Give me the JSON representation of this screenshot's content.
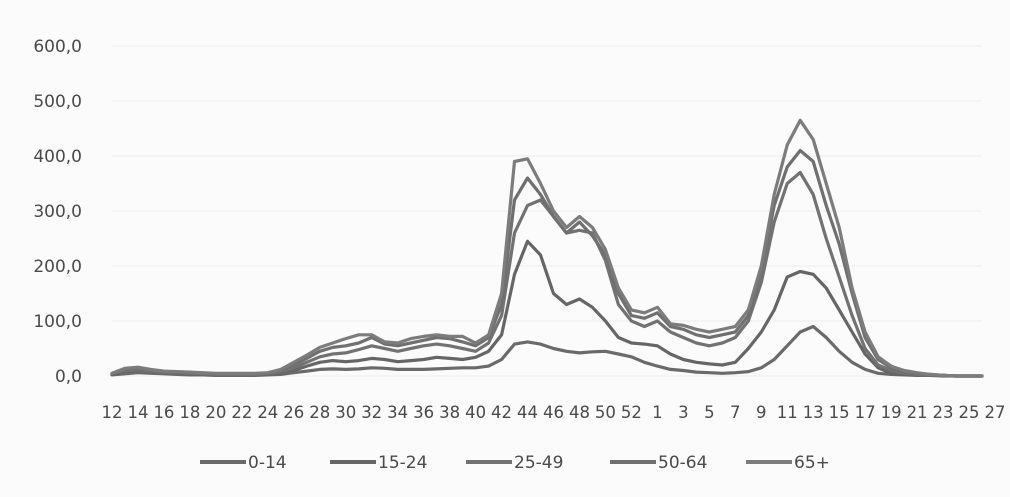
{
  "chart_data": {
    "type": "line",
    "title": "",
    "xlabel": "",
    "ylabel": "",
    "ylim": [
      0,
      600
    ],
    "yticks": [
      "0,0",
      "100,0",
      "200,0",
      "300,0",
      "400,0",
      "500,0",
      "600,0"
    ],
    "ytick_values": [
      0,
      100,
      200,
      300,
      400,
      500,
      600
    ],
    "x": [
      12,
      13,
      14,
      15,
      16,
      17,
      18,
      19,
      20,
      21,
      22,
      23,
      24,
      25,
      26,
      27,
      28,
      29,
      30,
      31,
      32,
      33,
      34,
      35,
      36,
      37,
      38,
      39,
      40,
      41,
      42,
      43,
      44,
      45,
      46,
      47,
      48,
      49,
      50,
      51,
      52,
      1,
      2,
      3,
      4,
      5,
      6,
      7,
      8,
      9,
      10,
      11,
      12,
      13,
      14,
      15,
      16,
      17,
      18,
      19,
      20,
      21,
      22,
      23,
      24,
      25,
      26,
      27
    ],
    "xtick_labels": [
      "12",
      "14",
      "16",
      "18",
      "20",
      "22",
      "24",
      "26",
      "28",
      "30",
      "32",
      "34",
      "36",
      "38",
      "40",
      "42",
      "44",
      "46",
      "48",
      "50",
      "52",
      "1",
      "3",
      "5",
      "7",
      "9",
      "11",
      "13",
      "15",
      "17",
      "19",
      "21",
      "23",
      "25",
      "27"
    ],
    "grid": false,
    "legend_position": "bottom",
    "series": [
      {
        "name": "0-14",
        "color": "#6a6a6a",
        "values": [
          2,
          4,
          6,
          5,
          4,
          3,
          2,
          2,
          1,
          1,
          1,
          1,
          2,
          3,
          6,
          9,
          12,
          13,
          12,
          13,
          15,
          14,
          12,
          12,
          12,
          13,
          14,
          15,
          15,
          18,
          30,
          58,
          62,
          58,
          50,
          45,
          42,
          44,
          45,
          40,
          35,
          25,
          18,
          12,
          10,
          7,
          6,
          5,
          6,
          8,
          15,
          30,
          55,
          80,
          90,
          70,
          45,
          25,
          12,
          5,
          3,
          2,
          1,
          1,
          0,
          0,
          0,
          0
        ]
      },
      {
        "name": "15-24",
        "color": "#666666",
        "values": [
          3,
          8,
          10,
          8,
          6,
          5,
          4,
          3,
          2,
          2,
          2,
          2,
          3,
          5,
          10,
          18,
          25,
          28,
          26,
          28,
          32,
          30,
          26,
          28,
          30,
          34,
          32,
          30,
          34,
          45,
          75,
          185,
          245,
          220,
          150,
          130,
          140,
          125,
          100,
          70,
          60,
          58,
          55,
          40,
          30,
          25,
          22,
          20,
          25,
          50,
          80,
          120,
          180,
          190,
          185,
          160,
          120,
          80,
          40,
          15,
          5,
          3,
          2,
          1,
          1,
          0,
          0,
          0
        ]
      },
      {
        "name": "25-49",
        "color": "#727272",
        "values": [
          4,
          10,
          12,
          9,
          7,
          6,
          5,
          4,
          3,
          3,
          3,
          3,
          4,
          8,
          15,
          25,
          35,
          40,
          42,
          48,
          55,
          50,
          45,
          50,
          55,
          58,
          55,
          50,
          45,
          60,
          110,
          260,
          310,
          320,
          290,
          260,
          265,
          260,
          210,
          130,
          100,
          90,
          100,
          80,
          70,
          60,
          55,
          60,
          70,
          100,
          170,
          280,
          350,
          370,
          330,
          250,
          180,
          110,
          50,
          20,
          10,
          5,
          3,
          2,
          1,
          0,
          0,
          0
        ]
      },
      {
        "name": "50-64",
        "color": "#707070",
        "values": [
          4,
          12,
          14,
          10,
          8,
          7,
          6,
          5,
          4,
          4,
          4,
          4,
          5,
          10,
          20,
          32,
          45,
          52,
          55,
          60,
          70,
          58,
          55,
          60,
          65,
          70,
          68,
          62,
          55,
          70,
          130,
          320,
          360,
          330,
          290,
          260,
          280,
          255,
          220,
          150,
          110,
          105,
          115,
          90,
          85,
          75,
          70,
          75,
          80,
          110,
          190,
          310,
          380,
          410,
          390,
          310,
          240,
          150,
          70,
          30,
          15,
          8,
          5,
          3,
          1,
          0,
          0,
          0
        ]
      },
      {
        "name": "65+",
        "color": "#7c7c7c",
        "values": [
          5,
          14,
          16,
          12,
          9,
          8,
          7,
          6,
          5,
          5,
          5,
          5,
          6,
          12,
          25,
          38,
          52,
          60,
          68,
          75,
          75,
          62,
          60,
          68,
          72,
          75,
          72,
          72,
          60,
          75,
          150,
          390,
          395,
          350,
          300,
          270,
          290,
          270,
          230,
          160,
          120,
          115,
          125,
          95,
          92,
          85,
          80,
          85,
          90,
          120,
          200,
          330,
          420,
          465,
          430,
          350,
          270,
          160,
          80,
          35,
          18,
          10,
          6,
          3,
          1,
          0,
          0,
          0
        ]
      }
    ]
  }
}
